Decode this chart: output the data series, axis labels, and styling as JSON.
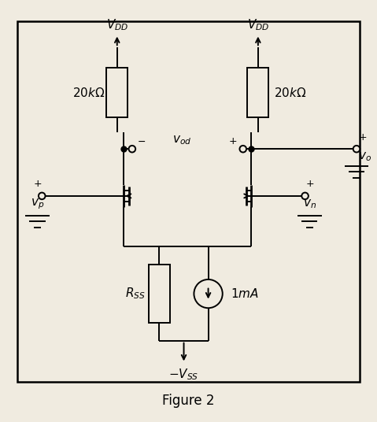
{
  "bg_color": "#f0ebe0",
  "border_color": "#000000",
  "fig_label": "Figure 2",
  "title_fontsize": 12,
  "label_fontsize": 11,
  "lw": 1.4,
  "lw_thick": 2.0
}
